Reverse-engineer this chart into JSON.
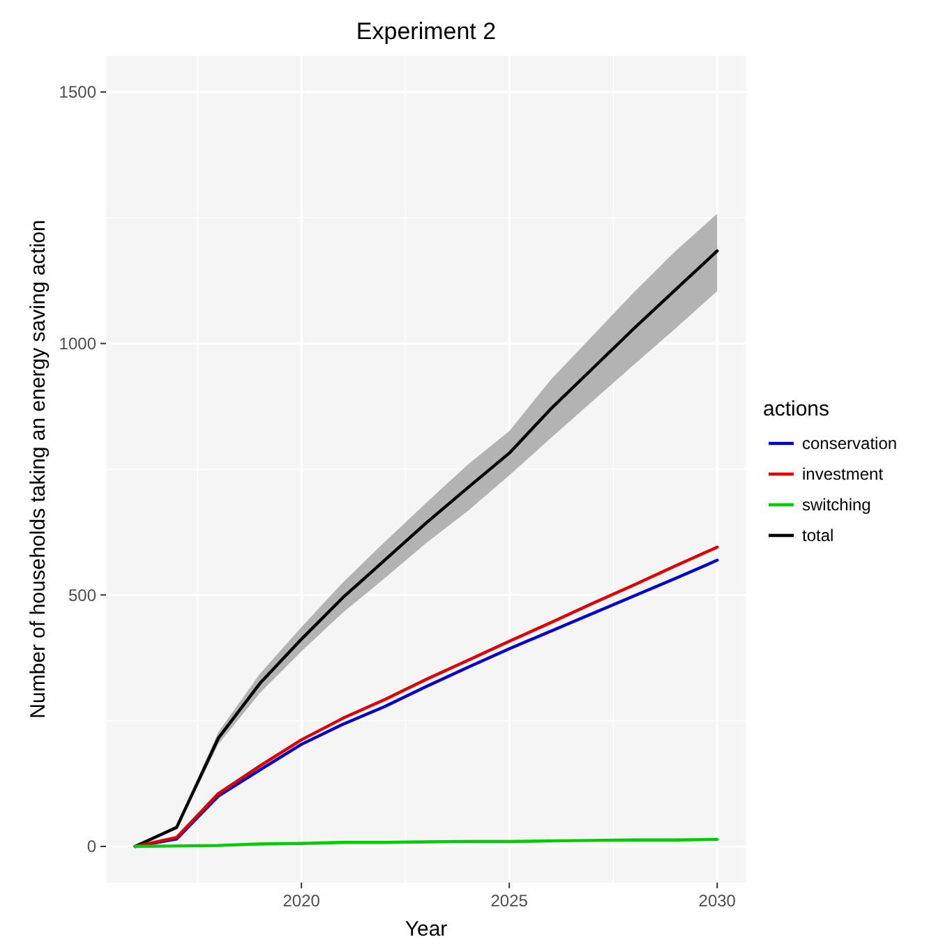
{
  "chart_data": {
    "type": "line",
    "title": "Experiment 2",
    "xlabel": "Year",
    "ylabel": "Number of households taking an energy saving action",
    "legend_title": "actions",
    "legend": "right",
    "grid": true,
    "x": [
      2016,
      2017,
      2018,
      2019,
      2020,
      2021,
      2022,
      2023,
      2024,
      2025,
      2026,
      2027,
      2028,
      2029,
      2030
    ],
    "xlim": [
      2015.3,
      2030.7
    ],
    "xticks": [
      2020,
      2025,
      2030
    ],
    "ylim": [
      -72,
      1572
    ],
    "yticks": [
      0,
      500,
      1000,
      1500
    ],
    "series": [
      {
        "name": "conservation",
        "color": "#0000cc",
        "values": [
          0,
          15,
          100,
          152,
          203,
          243,
          278,
          318,
          356,
          393,
          428,
          463,
          498,
          533,
          569
        ]
      },
      {
        "name": "investment",
        "color": "#dd0000",
        "values": [
          0,
          18,
          105,
          160,
          212,
          255,
          292,
          332,
          370,
          408,
          445,
          483,
          520,
          558,
          595
        ]
      },
      {
        "name": "switching",
        "color": "#00cc00",
        "values": [
          0,
          1,
          2,
          5,
          6,
          8,
          8,
          9,
          10,
          10,
          11,
          12,
          13,
          13,
          14
        ]
      },
      {
        "name": "total",
        "color": "#000000",
        "values": [
          0,
          38,
          215,
          324,
          412,
          495,
          569,
          643,
          713,
          782,
          870,
          950,
          1030,
          1107,
          1184
        ],
        "lower": [
          0,
          34,
          203,
          305,
          388,
          465,
          533,
          603,
          667,
          738,
          812,
          885,
          958,
          1030,
          1104
        ],
        "upper": [
          0,
          42,
          227,
          343,
          436,
          525,
          605,
          683,
          759,
          826,
          928,
          1015,
          1102,
          1184,
          1258
        ]
      }
    ]
  }
}
